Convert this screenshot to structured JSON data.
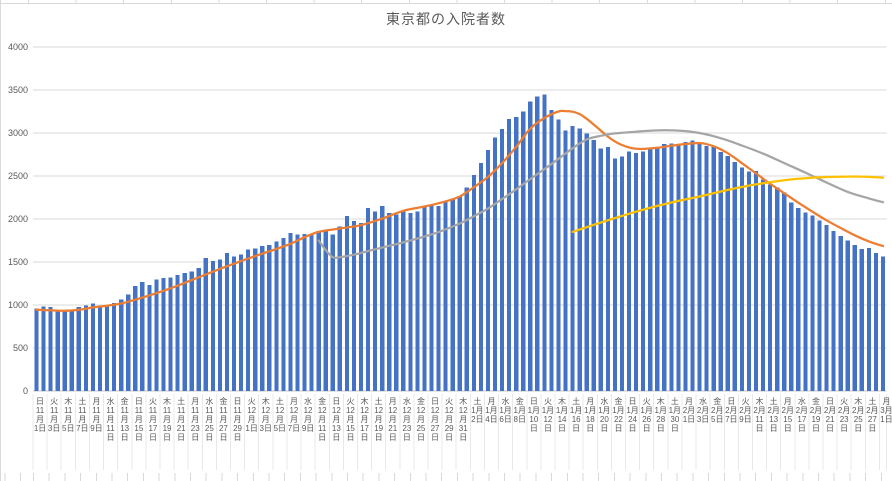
{
  "chart_data": {
    "type": "bar",
    "title": "東京都の入院者数",
    "xlabel": "",
    "ylabel": "",
    "ylim": [
      0,
      4000
    ],
    "y_ticks": [
      0,
      500,
      1000,
      1500,
      2000,
      2500,
      3000,
      3500,
      4000
    ],
    "grid": true,
    "legend": "none",
    "x_label_interval_days": 2,
    "x_range": "11月1日(日) 〜 3月1日(月)",
    "x_labels": [
      {
        "w": "日",
        "m": "11月",
        "d": "1日"
      },
      {
        "w": "火",
        "m": "11月",
        "d": "3日"
      },
      {
        "w": "木",
        "m": "11月",
        "d": "5日"
      },
      {
        "w": "土",
        "m": "11月",
        "d": "7日"
      },
      {
        "w": "月",
        "m": "11月",
        "d": "9日"
      },
      {
        "w": "水",
        "m": "11月",
        "d": "11日"
      },
      {
        "w": "金",
        "m": "11月",
        "d": "13日"
      },
      {
        "w": "日",
        "m": "11月",
        "d": "15日"
      },
      {
        "w": "火",
        "m": "11月",
        "d": "17日"
      },
      {
        "w": "木",
        "m": "11月",
        "d": "19日"
      },
      {
        "w": "土",
        "m": "11月",
        "d": "21日"
      },
      {
        "w": "月",
        "m": "11月",
        "d": "23日"
      },
      {
        "w": "水",
        "m": "11月",
        "d": "25日"
      },
      {
        "w": "金",
        "m": "11月",
        "d": "27日"
      },
      {
        "w": "日",
        "m": "11月",
        "d": "29日"
      },
      {
        "w": "火",
        "m": "12月",
        "d": "1日"
      },
      {
        "w": "木",
        "m": "12月",
        "d": "3日"
      },
      {
        "w": "土",
        "m": "12月",
        "d": "5日"
      },
      {
        "w": "月",
        "m": "12月",
        "d": "7日"
      },
      {
        "w": "水",
        "m": "12月",
        "d": "9日"
      },
      {
        "w": "金",
        "m": "12月",
        "d": "11日"
      },
      {
        "w": "日",
        "m": "12月",
        "d": "13日"
      },
      {
        "w": "火",
        "m": "12月",
        "d": "15日"
      },
      {
        "w": "木",
        "m": "12月",
        "d": "17日"
      },
      {
        "w": "土",
        "m": "12月",
        "d": "19日"
      },
      {
        "w": "月",
        "m": "12月",
        "d": "21日"
      },
      {
        "w": "水",
        "m": "12月",
        "d": "23日"
      },
      {
        "w": "金",
        "m": "12月",
        "d": "25日"
      },
      {
        "w": "日",
        "m": "12月",
        "d": "27日"
      },
      {
        "w": "火",
        "m": "12月",
        "d": "29日"
      },
      {
        "w": "木",
        "m": "12月",
        "d": "31日"
      },
      {
        "w": "土",
        "m": "1月",
        "d": "2日"
      },
      {
        "w": "月",
        "m": "1月",
        "d": "4日"
      },
      {
        "w": "水",
        "m": "1月",
        "d": "6日"
      },
      {
        "w": "金",
        "m": "1月",
        "d": "8日"
      },
      {
        "w": "日",
        "m": "1月",
        "d": "10日"
      },
      {
        "w": "火",
        "m": "1月",
        "d": "12日"
      },
      {
        "w": "木",
        "m": "1月",
        "d": "14日"
      },
      {
        "w": "土",
        "m": "1月",
        "d": "16日"
      },
      {
        "w": "月",
        "m": "1月",
        "d": "18日"
      },
      {
        "w": "水",
        "m": "1月",
        "d": "20日"
      },
      {
        "w": "金",
        "m": "1月",
        "d": "22日"
      },
      {
        "w": "日",
        "m": "1月",
        "d": "24日"
      },
      {
        "w": "火",
        "m": "1月",
        "d": "26日"
      },
      {
        "w": "木",
        "m": "1月",
        "d": "28日"
      },
      {
        "w": "土",
        "m": "1月",
        "d": "30日"
      },
      {
        "w": "月",
        "m": "2月",
        "d": "1日"
      },
      {
        "w": "水",
        "m": "2月",
        "d": "3日"
      },
      {
        "w": "金",
        "m": "2月",
        "d": "5日"
      },
      {
        "w": "日",
        "m": "2月",
        "d": "7日"
      },
      {
        "w": "火",
        "m": "2月",
        "d": "9日"
      },
      {
        "w": "木",
        "m": "2月",
        "d": "11日"
      },
      {
        "w": "土",
        "m": "2月",
        "d": "13日"
      },
      {
        "w": "月",
        "m": "2月",
        "d": "15日"
      },
      {
        "w": "水",
        "m": "2月",
        "d": "17日"
      },
      {
        "w": "金",
        "m": "2月",
        "d": "19日"
      },
      {
        "w": "日",
        "m": "2月",
        "d": "21日"
      },
      {
        "w": "火",
        "m": "2月",
        "d": "23日"
      },
      {
        "w": "木",
        "m": "2月",
        "d": "25日"
      },
      {
        "w": "土",
        "m": "2月",
        "d": "27日"
      },
      {
        "w": "月",
        "m": "3月",
        "d": "1日"
      }
    ],
    "bars": {
      "name": "daily-bars",
      "color": "#4472C4",
      "values": [
        960,
        985,
        975,
        940,
        930,
        945,
        975,
        995,
        1020,
        985,
        995,
        1025,
        1065,
        1120,
        1220,
        1265,
        1235,
        1295,
        1315,
        1320,
        1350,
        1375,
        1390,
        1430,
        1545,
        1510,
        1530,
        1605,
        1565,
        1585,
        1645,
        1655,
        1685,
        1700,
        1740,
        1780,
        1840,
        1820,
        1825,
        1820,
        1860,
        1875,
        1820,
        1915,
        2035,
        1975,
        1955,
        2130,
        2090,
        2150,
        2070,
        2050,
        2090,
        2070,
        2090,
        2150,
        2170,
        2150,
        2210,
        2230,
        2265,
        2365,
        2510,
        2650,
        2800,
        2950,
        3045,
        3160,
        3185,
        3250,
        3365,
        3425,
        3445,
        3270,
        3155,
        3030,
        3080,
        3050,
        2995,
        2920,
        2820,
        2840,
        2705,
        2725,
        2785,
        2765,
        2785,
        2830,
        2840,
        2870,
        2880,
        2865,
        2895,
        2915,
        2895,
        2850,
        2840,
        2780,
        2730,
        2660,
        2600,
        2550,
        2560,
        2460,
        2400,
        2365,
        2310,
        2190,
        2130,
        2075,
        2040,
        1980,
        1930,
        1860,
        1805,
        1750,
        1700,
        1650,
        1660,
        1605,
        1565
      ]
    },
    "lines": [
      {
        "name": "orange-trend",
        "color": "#ED7D31",
        "points": [
          [
            0,
            945
          ],
          [
            2,
            938
          ],
          [
            4,
            932
          ],
          [
            6,
            944
          ],
          [
            8,
            972
          ],
          [
            10,
            992
          ],
          [
            12,
            1018
          ],
          [
            14,
            1062
          ],
          [
            16,
            1112
          ],
          [
            18,
            1165
          ],
          [
            20,
            1225
          ],
          [
            22,
            1290
          ],
          [
            24,
            1355
          ],
          [
            26,
            1420
          ],
          [
            28,
            1480
          ],
          [
            30,
            1540
          ],
          [
            32,
            1597
          ],
          [
            34,
            1652
          ],
          [
            36,
            1712
          ],
          [
            38,
            1788
          ],
          [
            40,
            1850
          ],
          [
            43,
            1890
          ],
          [
            46,
            1928
          ],
          [
            49,
            2005
          ],
          [
            52,
            2095
          ],
          [
            55,
            2145
          ],
          [
            58,
            2205
          ],
          [
            60,
            2262
          ],
          [
            62,
            2370
          ],
          [
            64,
            2490
          ],
          [
            66,
            2650
          ],
          [
            68,
            2840
          ],
          [
            70,
            3050
          ],
          [
            72,
            3175
          ],
          [
            74,
            3250
          ],
          [
            75,
            3255
          ],
          [
            76,
            3248
          ],
          [
            77,
            3220
          ],
          [
            78,
            3165
          ],
          [
            79,
            3098
          ],
          [
            80,
            3028
          ],
          [
            81,
            2958
          ],
          [
            82,
            2902
          ],
          [
            83,
            2860
          ],
          [
            84,
            2832
          ],
          [
            85,
            2818
          ],
          [
            86,
            2815
          ],
          [
            88,
            2828
          ],
          [
            90,
            2852
          ],
          [
            92,
            2872
          ],
          [
            94,
            2884
          ],
          [
            95,
            2870
          ],
          [
            96,
            2845
          ],
          [
            97,
            2810
          ],
          [
            98,
            2765
          ],
          [
            99,
            2710
          ],
          [
            100,
            2650
          ],
          [
            102,
            2530
          ],
          [
            104,
            2410
          ],
          [
            106,
            2300
          ],
          [
            108,
            2190
          ],
          [
            110,
            2085
          ],
          [
            112,
            1985
          ],
          [
            114,
            1895
          ],
          [
            116,
            1810
          ],
          [
            118,
            1740
          ],
          [
            120,
            1685
          ]
        ]
      },
      {
        "name": "gray-trend",
        "color": "#A5A5A5",
        "points": [
          [
            40,
            1750
          ],
          [
            41,
            1640
          ],
          [
            42,
            1555
          ],
          [
            43,
            1555
          ],
          [
            45,
            1585
          ],
          [
            48,
            1648
          ],
          [
            51,
            1708
          ],
          [
            54,
            1772
          ],
          [
            57,
            1848
          ],
          [
            60,
            1948
          ],
          [
            62,
            2032
          ],
          [
            64,
            2122
          ],
          [
            66,
            2232
          ],
          [
            68,
            2345
          ],
          [
            70,
            2465
          ],
          [
            72,
            2580
          ],
          [
            74,
            2700
          ],
          [
            76,
            2822
          ],
          [
            78,
            2925
          ],
          [
            80,
            2968
          ],
          [
            82,
            2995
          ],
          [
            85,
            3015
          ],
          [
            88,
            3030
          ],
          [
            91,
            3028
          ],
          [
            94,
            3000
          ],
          [
            97,
            2940
          ],
          [
            100,
            2855
          ],
          [
            103,
            2760
          ],
          [
            106,
            2650
          ],
          [
            109,
            2540
          ],
          [
            112,
            2425
          ],
          [
            115,
            2315
          ],
          [
            118,
            2240
          ],
          [
            120,
            2195
          ]
        ]
      },
      {
        "name": "yellow-trend",
        "color": "#FFC000",
        "points": [
          [
            76,
            1850
          ],
          [
            78,
            1905
          ],
          [
            80,
            1958
          ],
          [
            82,
            2010
          ],
          [
            84,
            2060
          ],
          [
            86,
            2108
          ],
          [
            88,
            2152
          ],
          [
            90,
            2192
          ],
          [
            92,
            2228
          ],
          [
            94,
            2262
          ],
          [
            96,
            2300
          ],
          [
            98,
            2338
          ],
          [
            100,
            2372
          ],
          [
            102,
            2402
          ],
          [
            104,
            2428
          ],
          [
            106,
            2450
          ],
          [
            108,
            2468
          ],
          [
            110,
            2480
          ],
          [
            112,
            2488
          ],
          [
            114,
            2492
          ],
          [
            116,
            2494
          ],
          [
            118,
            2490
          ],
          [
            120,
            2480
          ]
        ]
      }
    ]
  },
  "style": {
    "grid_color": "#D9D9D9",
    "zero_axis_color": "#C6C6C6",
    "separator_color": "#E8E8E8",
    "axis_text_color": "#595959",
    "title_color": "#595959",
    "cell_border_color": "#D9D9D9",
    "background": "#FFFFFF"
  }
}
